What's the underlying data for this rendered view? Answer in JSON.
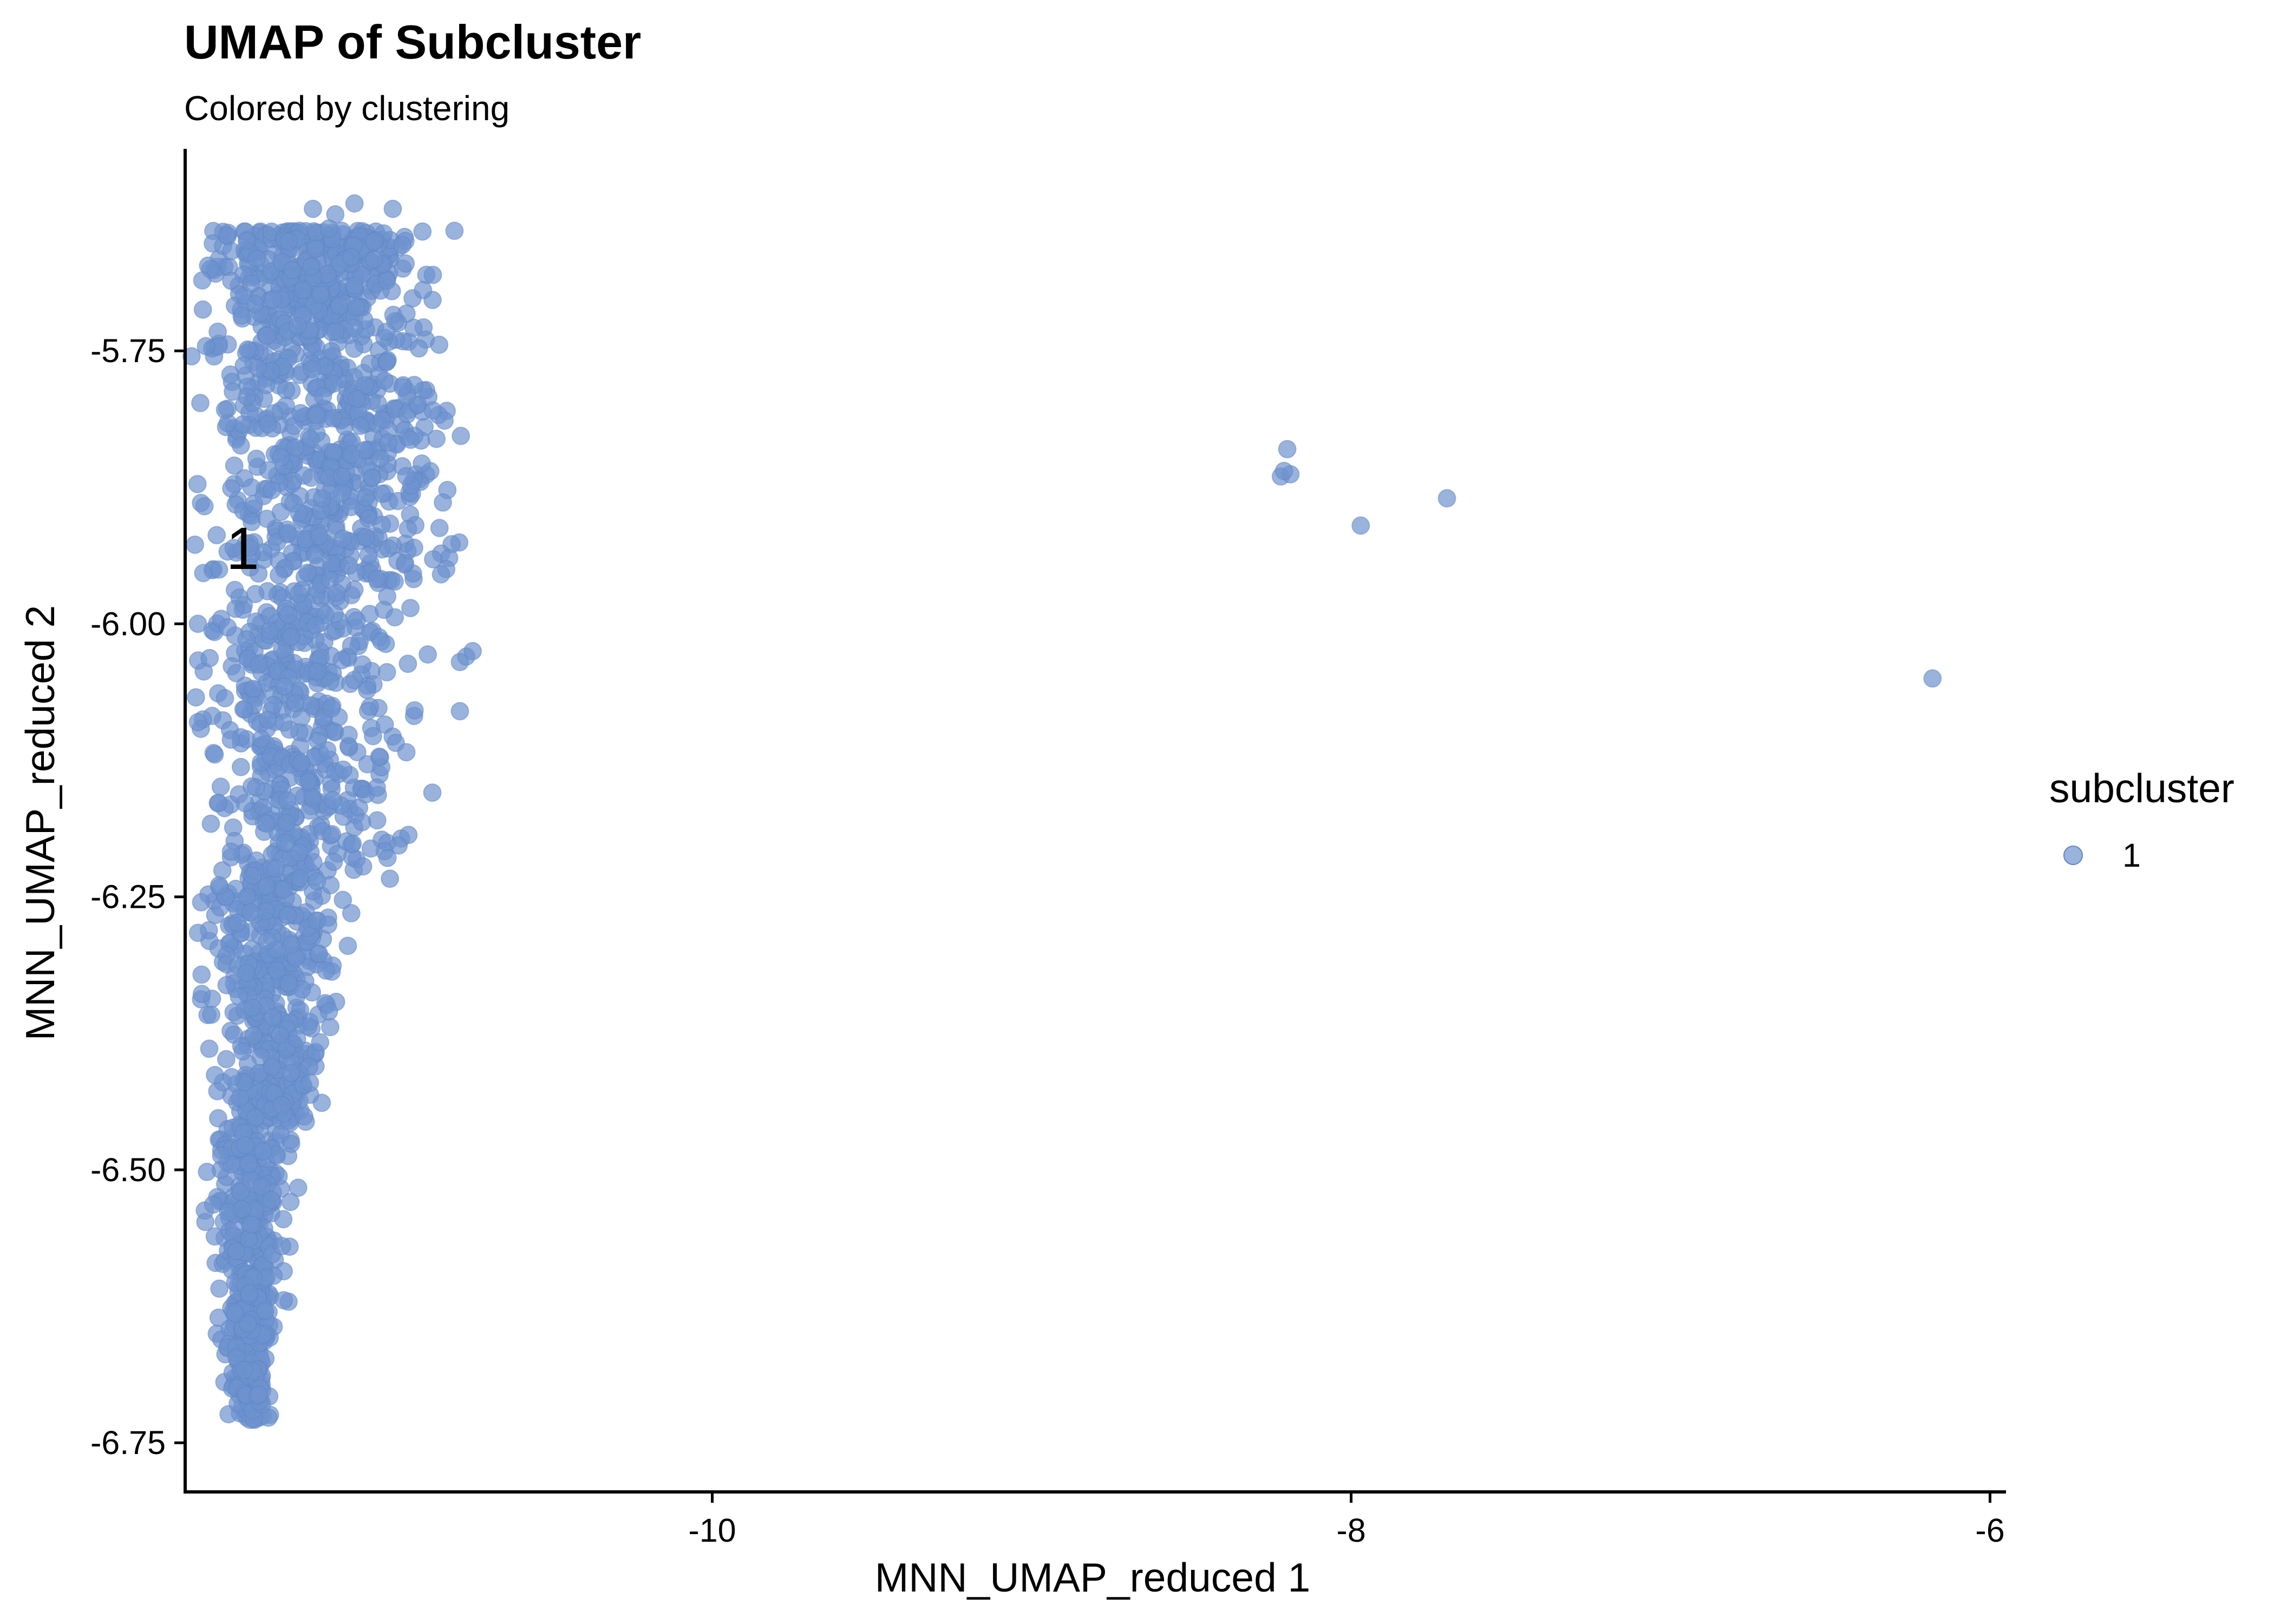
{
  "chart_data": {
    "type": "scatter",
    "title": "UMAP of Subcluster",
    "subtitle": "Colored by clustering",
    "xlabel": "MNN_UMAP_reduced 1",
    "ylabel": "MNN_UMAP_reduced 2",
    "xlim": [
      -11.65,
      -5.95
    ],
    "ylim": [
      -6.795,
      -5.565
    ],
    "x_ticks": [
      -10,
      -8,
      -6
    ],
    "x_tick_labels": [
      "-10",
      "-8",
      "-6"
    ],
    "y_ticks": [
      -5.75,
      -6.0,
      -6.25,
      -6.5,
      -6.75
    ],
    "y_tick_labels": [
      "-5.75",
      "-6.00",
      "-6.25",
      "-6.50",
      "-6.75"
    ],
    "grid": false,
    "legend": {
      "title": "subcluster",
      "position": "right",
      "entries": [
        "1"
      ]
    },
    "point_color": "#6E93CF",
    "point_opacity": 0.7,
    "cluster_label": {
      "text": "1",
      "x": -11.47,
      "y": -5.93
    },
    "series": [
      {
        "name": "1",
        "points": [
          [
            -11.12,
            -5.615
          ],
          [
            -11.18,
            -5.625
          ],
          [
            -11.2,
            -5.638
          ],
          [
            -11.25,
            -5.62
          ],
          [
            -11.0,
            -5.62
          ],
          [
            -11.06,
            -5.65
          ],
          [
            -10.96,
            -5.67
          ],
          [
            -8.2,
            -5.84
          ],
          [
            -8.22,
            -5.865
          ],
          [
            -8.19,
            -5.863
          ],
          [
            -8.21,
            -5.86
          ],
          [
            -7.97,
            -5.91
          ],
          [
            -7.7,
            -5.885
          ],
          [
            -6.18,
            -6.05
          ],
          [
            -10.79,
            -6.035
          ],
          [
            -10.77,
            -6.03
          ],
          [
            -10.75,
            -6.025
          ],
          [
            -10.79,
            -6.08
          ],
          [
            -11.61,
            -6.0
          ],
          [
            -11.61,
            -6.09
          ],
          [
            -11.6,
            -6.255
          ],
          [
            -11.63,
            -5.755
          ],
          [
            -11.05,
            -6.15
          ],
          [
            -11.13,
            -6.265
          ],
          [
            -11.2,
            -6.355
          ]
        ]
      }
    ]
  }
}
